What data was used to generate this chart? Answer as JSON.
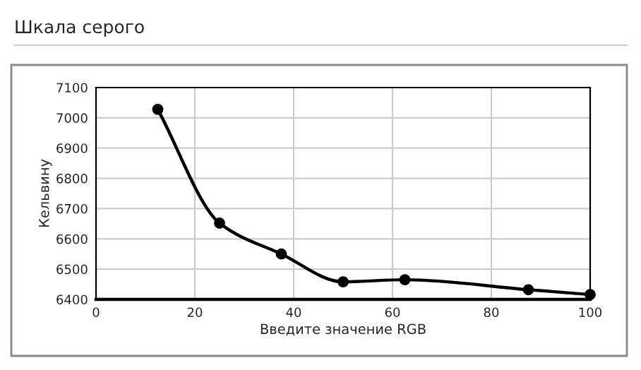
{
  "chart_data": {
    "type": "line",
    "title": "Шкала серого",
    "xlabel": "Введите значение RGB",
    "ylabel": "Кельвину",
    "x": [
      12.5,
      25,
      37.5,
      50,
      62.5,
      87.5,
      100
    ],
    "series": [
      {
        "color": "#000000",
        "values": [
          7028,
          6652,
          6550,
          6458,
          6465,
          6432,
          6416
        ]
      }
    ],
    "xlim": [
      0,
      100
    ],
    "xticks": [
      0,
      20,
      40,
      60,
      80,
      100
    ],
    "ylim": [
      6400,
      7100
    ],
    "yticks": [
      6400,
      6500,
      6600,
      6700,
      6800,
      6900,
      7000,
      7100
    ],
    "grid": true,
    "marker": "circle",
    "line_style": "solid",
    "legend": false
  }
}
